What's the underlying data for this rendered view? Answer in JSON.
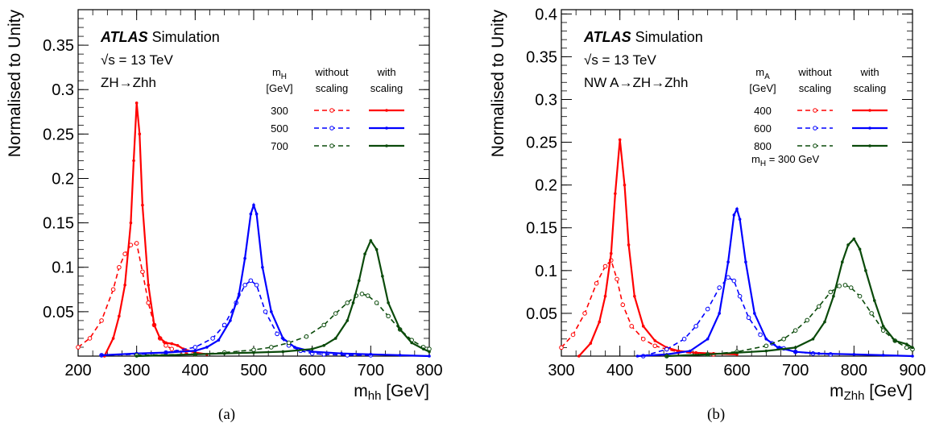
{
  "chart_data": [
    {
      "type": "line",
      "caption": "(a)",
      "ylabel": "Normalised to Unity",
      "xlabel_main": "m",
      "xlabel_sub": "hh",
      "xlabel_unit": " [GeV]",
      "xlim": [
        200,
        800
      ],
      "ylim": [
        0,
        0.39
      ],
      "xticks": [
        "200",
        "300",
        "400",
        "500",
        "600",
        "700",
        "800"
      ],
      "yticks": [
        "0.05",
        "0.1",
        "0.15",
        "0.2",
        "0.25",
        "0.3",
        "0.35"
      ],
      "atlas_label": "ATLAS",
      "simulation_label": "Simulation",
      "energy_label": "√s = 13 TeV",
      "process_label": "ZH→Zhh",
      "extra_label": "",
      "legend": {
        "mass_header_main": "m",
        "mass_header_sub": "H",
        "mass_header_unit": "[GeV]",
        "without_header": [
          "without",
          "scaling"
        ],
        "with_header": [
          "with",
          "scaling"
        ],
        "rows": [
          "300",
          "500",
          "700"
        ]
      },
      "series": [
        {
          "name": "300",
          "color": "#ff0000",
          "style": "without",
          "x": [
            200,
            220,
            240,
            260,
            270,
            280,
            290,
            300,
            310,
            320,
            330,
            340,
            350,
            360,
            380,
            400
          ],
          "y": [
            0.01,
            0.02,
            0.04,
            0.075,
            0.1,
            0.115,
            0.125,
            0.127,
            0.095,
            0.06,
            0.035,
            0.02,
            0.012,
            0.008,
            0.004,
            0.002
          ]
        },
        {
          "name": "300",
          "color": "#ff0000",
          "style": "with",
          "x": [
            245,
            260,
            270,
            280,
            290,
            295,
            300,
            305,
            310,
            320,
            330,
            340,
            350,
            360,
            370,
            380,
            400,
            420
          ],
          "y": [
            0.0,
            0.02,
            0.045,
            0.08,
            0.15,
            0.22,
            0.285,
            0.25,
            0.17,
            0.08,
            0.035,
            0.02,
            0.015,
            0.014,
            0.012,
            0.008,
            0.004,
            0.002
          ]
        },
        {
          "name": "500",
          "color": "#0000ff",
          "style": "without",
          "x": [
            240,
            300,
            350,
            400,
            430,
            450,
            470,
            485,
            495,
            505,
            520,
            540,
            560,
            580,
            600,
            620,
            660,
            700
          ],
          "y": [
            0.001,
            0.002,
            0.004,
            0.01,
            0.02,
            0.035,
            0.06,
            0.08,
            0.085,
            0.08,
            0.05,
            0.025,
            0.012,
            0.006,
            0.003,
            0.002,
            0.001,
            0.001
          ]
        },
        {
          "name": "500",
          "color": "#0000ff",
          "style": "with",
          "x": [
            240,
            300,
            350,
            400,
            420,
            440,
            460,
            475,
            485,
            495,
            500,
            505,
            515,
            530,
            550,
            570,
            600,
            650,
            700,
            750,
            800
          ],
          "y": [
            0.001,
            0.003,
            0.004,
            0.006,
            0.01,
            0.018,
            0.04,
            0.07,
            0.11,
            0.16,
            0.17,
            0.16,
            0.1,
            0.05,
            0.02,
            0.01,
            0.005,
            0.003,
            0.002,
            0.001,
            0.0
          ]
        },
        {
          "name": "700",
          "color": "#0a4a0a",
          "style": "without",
          "x": [
            300,
            400,
            450,
            500,
            530,
            560,
            590,
            620,
            640,
            660,
            675,
            685,
            695,
            710,
            730,
            750,
            770,
            790,
            800
          ],
          "y": [
            0.001,
            0.002,
            0.004,
            0.007,
            0.01,
            0.015,
            0.022,
            0.035,
            0.048,
            0.06,
            0.068,
            0.07,
            0.068,
            0.06,
            0.045,
            0.03,
            0.018,
            0.01,
            0.008
          ]
        },
        {
          "name": "700",
          "color": "#0a4a0a",
          "style": "with",
          "x": [
            300,
            400,
            450,
            500,
            550,
            600,
            620,
            640,
            660,
            670,
            680,
            690,
            700,
            710,
            720,
            730,
            750,
            770,
            790,
            800
          ],
          "y": [
            0.0,
            0.002,
            0.003,
            0.004,
            0.005,
            0.008,
            0.012,
            0.02,
            0.04,
            0.06,
            0.085,
            0.115,
            0.13,
            0.12,
            0.09,
            0.06,
            0.03,
            0.015,
            0.008,
            0.005
          ]
        }
      ]
    },
    {
      "type": "line",
      "caption": "(b)",
      "ylabel": "Normalised to Unity",
      "xlabel_main": "m",
      "xlabel_sub": "Zhh",
      "xlabel_unit": " [GeV]",
      "xlim": [
        300,
        900
      ],
      "ylim": [
        0,
        0.405
      ],
      "xticks": [
        "300",
        "400",
        "500",
        "600",
        "700",
        "800",
        "900"
      ],
      "yticks": [
        "0.05",
        "0.1",
        "0.15",
        "0.2",
        "0.25",
        "0.3",
        "0.35",
        "0.4"
      ],
      "atlas_label": "ATLAS",
      "simulation_label": "Simulation",
      "energy_label": "√s = 13 TeV",
      "process_label": "NW A→ZH→Zhh",
      "extra_label_main": "m",
      "extra_label_sub": "H",
      "extra_label_rest": " = 300 GeV",
      "legend": {
        "mass_header_main": "m",
        "mass_header_sub": "A",
        "mass_header_unit": "[GeV]",
        "without_header": [
          "without",
          "scaling"
        ],
        "with_header": [
          "with",
          "scaling"
        ],
        "rows": [
          "400",
          "600",
          "800"
        ]
      },
      "series": [
        {
          "name": "400",
          "color": "#ff0000",
          "style": "without",
          "x": [
            300,
            320,
            340,
            360,
            375,
            385,
            395,
            405,
            420,
            440,
            460,
            480,
            500,
            530,
            560
          ],
          "y": [
            0.01,
            0.025,
            0.05,
            0.085,
            0.105,
            0.112,
            0.09,
            0.06,
            0.035,
            0.02,
            0.012,
            0.008,
            0.005,
            0.003,
            0.002
          ]
        },
        {
          "name": "400",
          "color": "#ff0000",
          "style": "with",
          "x": [
            330,
            350,
            365,
            375,
            385,
            392,
            400,
            408,
            415,
            425,
            440,
            460,
            480,
            500,
            530,
            560,
            600
          ],
          "y": [
            0.0,
            0.015,
            0.04,
            0.07,
            0.12,
            0.19,
            0.253,
            0.2,
            0.13,
            0.07,
            0.035,
            0.018,
            0.01,
            0.006,
            0.004,
            0.003,
            0.002
          ]
        },
        {
          "name": "600",
          "color": "#0000ff",
          "style": "without",
          "x": [
            440,
            480,
            510,
            530,
            550,
            570,
            585,
            595,
            605,
            620,
            640,
            660,
            680,
            700,
            730,
            760
          ],
          "y": [
            0.0,
            0.008,
            0.02,
            0.035,
            0.055,
            0.08,
            0.092,
            0.088,
            0.07,
            0.045,
            0.025,
            0.015,
            0.009,
            0.005,
            0.003,
            0.002
          ]
        },
        {
          "name": "600",
          "color": "#0000ff",
          "style": "with",
          "x": [
            430,
            480,
            520,
            550,
            570,
            585,
            595,
            600,
            605,
            615,
            630,
            650,
            670,
            700,
            740,
            800,
            850,
            900
          ],
          "y": [
            0.0,
            0.002,
            0.006,
            0.02,
            0.05,
            0.11,
            0.165,
            0.172,
            0.16,
            0.11,
            0.05,
            0.02,
            0.01,
            0.005,
            0.003,
            0.002,
            0.001,
            0.0
          ]
        },
        {
          "name": "800",
          "color": "#0a4a0a",
          "style": "without",
          "x": [
            480,
            550,
            600,
            650,
            680,
            700,
            720,
            740,
            760,
            775,
            785,
            795,
            810,
            830,
            850,
            870,
            890,
            900
          ],
          "y": [
            0.0,
            0.002,
            0.005,
            0.012,
            0.02,
            0.03,
            0.042,
            0.058,
            0.075,
            0.082,
            0.083,
            0.08,
            0.07,
            0.05,
            0.03,
            0.018,
            0.01,
            0.008
          ]
        },
        {
          "name": "800",
          "color": "#0a4a0a",
          "style": "with",
          "x": [
            480,
            550,
            600,
            650,
            700,
            730,
            750,
            765,
            780,
            790,
            800,
            810,
            820,
            835,
            850,
            870,
            890,
            900
          ],
          "y": [
            0.0,
            0.002,
            0.004,
            0.006,
            0.01,
            0.02,
            0.04,
            0.07,
            0.11,
            0.13,
            0.137,
            0.125,
            0.1,
            0.065,
            0.035,
            0.018,
            0.014,
            0.01
          ]
        }
      ]
    }
  ]
}
